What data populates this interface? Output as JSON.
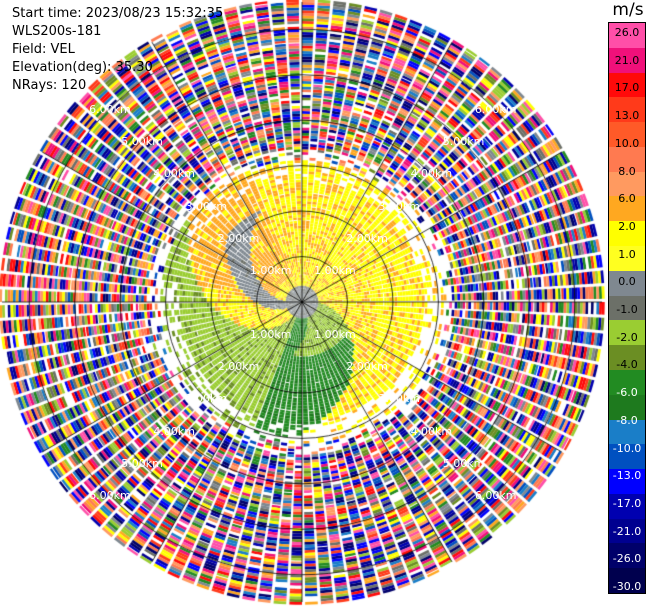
{
  "info": {
    "start_time": "Start time: 2023/08/23 15:32:35",
    "site": "WLS200s-181",
    "field": "Field: VEL",
    "elevation": "Elevation(deg): 35.30",
    "nrays": "NRays: 120"
  },
  "chart_data": {
    "type": "heatmap",
    "projection": "polar-ppi",
    "range_rings_km": [
      1.0,
      2.0,
      3.0,
      4.0,
      5.0,
      6.0
    ],
    "ring_labels": [
      "1.00km",
      "2.00km",
      "3.00km",
      "4.00km",
      "5.00km",
      "6.00km"
    ],
    "max_range_km": 6.6,
    "radial_lines_deg": [
      0,
      30,
      60,
      90,
      120,
      150,
      180,
      210,
      240,
      270,
      300,
      330
    ],
    "colorbar": {
      "unit": "m/s",
      "tick_labels": [
        "26.0",
        "21.0",
        "17.0",
        "13.0",
        "10.0",
        "8.0",
        "6.0",
        "2.0",
        "1.0",
        "0.0",
        "-1.0",
        "-2.0",
        "-4.0",
        "-6.0",
        "-8.0",
        "-10.0",
        "-13.0",
        "-17.0",
        "-21.0",
        "-26.0",
        "-30.0"
      ],
      "colors": [
        "#ff4fa8",
        "#f0107a",
        "#ff0a0a",
        "#ff3a1a",
        "#ff5a28",
        "#ff7a50",
        "#ff9a60",
        "#ffa820",
        "#ffff00",
        "#ffff20",
        "#7f8890",
        "#6c7068",
        "#9acd32",
        "#6b8e23",
        "#228b22",
        "#1e7a1e",
        "#1a7ec8",
        "#0050c0",
        "#0000ff",
        "#0000b0",
        "#000090",
        "#00006a",
        "#00004e"
      ]
    },
    "velocity_pattern": {
      "inner_yellow_range_km": [
        0.0,
        3.0
      ],
      "inner_yellow_sector_deg": [
        200,
        70
      ],
      "inner_green_sector_deg": [
        80,
        200
      ],
      "zero_band_deg": [
        235,
        260
      ],
      "noise_beyond_km": 3.1
    }
  }
}
